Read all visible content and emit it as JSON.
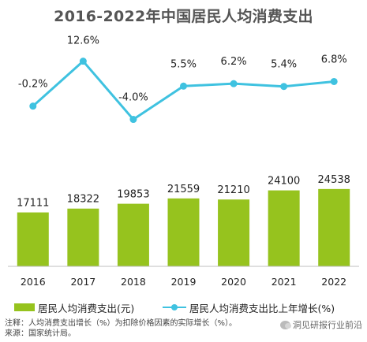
{
  "chart_data": {
    "type": "bar+line",
    "title": "2016-2022年中国居民人均消费支出",
    "categories": [
      "2016",
      "2017",
      "2018",
      "2019",
      "2020",
      "2021",
      "2022"
    ],
    "series": [
      {
        "name": "居民人均消费支出(元)",
        "type": "bar",
        "values": [
          17111,
          18322,
          19853,
          21559,
          21210,
          24100,
          24538
        ],
        "labels": [
          "17111",
          "18322",
          "19853",
          "21559",
          "21210",
          "24100",
          "24538"
        ],
        "color": "#96c31e"
      },
      {
        "name": "居民人均消费支出比上年增长(%)",
        "type": "line",
        "values": [
          -0.2,
          12.6,
          -4.0,
          5.5,
          6.2,
          5.4,
          6.8
        ],
        "labels": [
          "-0.2%",
          "12.6%",
          "-4.0%",
          "5.5%",
          "6.2%",
          "5.4%",
          "6.8%"
        ],
        "color": "#3fc2e0"
      }
    ],
    "bar_axis_range": [
      0,
      50000
    ],
    "line_axis_range": [
      -5,
      15
    ],
    "grid": false,
    "legend_position": "bottom"
  },
  "footnote": "注释：人均消费支出增长（%）为扣除价格因素的实际增长（%）。来源：国家统计局。",
  "watermark": "洞见研报行业前沿"
}
